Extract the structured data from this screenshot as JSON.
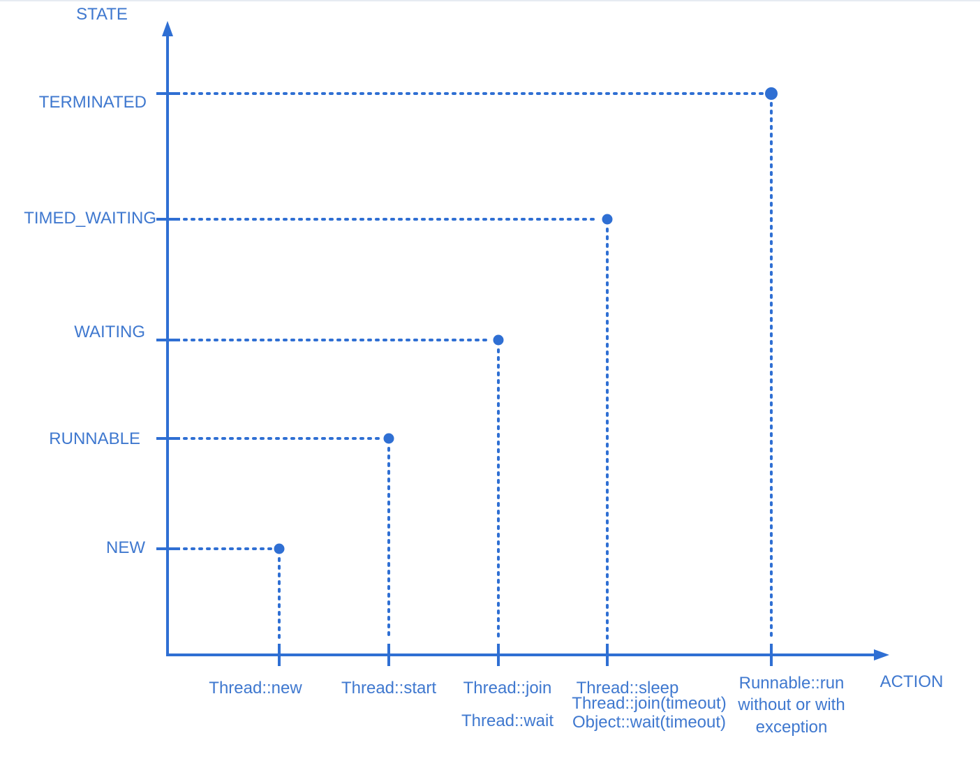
{
  "colors": {
    "accent": "#2f6fd3",
    "label": "#3f78cf"
  },
  "axes": {
    "y_title": "STATE",
    "x_title": "ACTION"
  },
  "chart_data": {
    "type": "scatter",
    "y_categories": [
      "NEW",
      "RUNNABLE",
      "WAITING",
      "TIMED_WAITING",
      "TERMINATED"
    ],
    "points": [
      {
        "action": [
          "Thread::new"
        ],
        "state": "NEW"
      },
      {
        "action": [
          "Thread::start"
        ],
        "state": "RUNNABLE"
      },
      {
        "action": [
          "Thread::join",
          "Thread::wait"
        ],
        "state": "WAITING"
      },
      {
        "action": [
          "Thread::sleep",
          "Thread::join(timeout)",
          "Object::wait(timeout)"
        ],
        "state": "TIMED_WAITING"
      },
      {
        "action": [
          "Runnable::run",
          "without or with",
          "exception"
        ],
        "state": "TERMINATED"
      }
    ]
  }
}
